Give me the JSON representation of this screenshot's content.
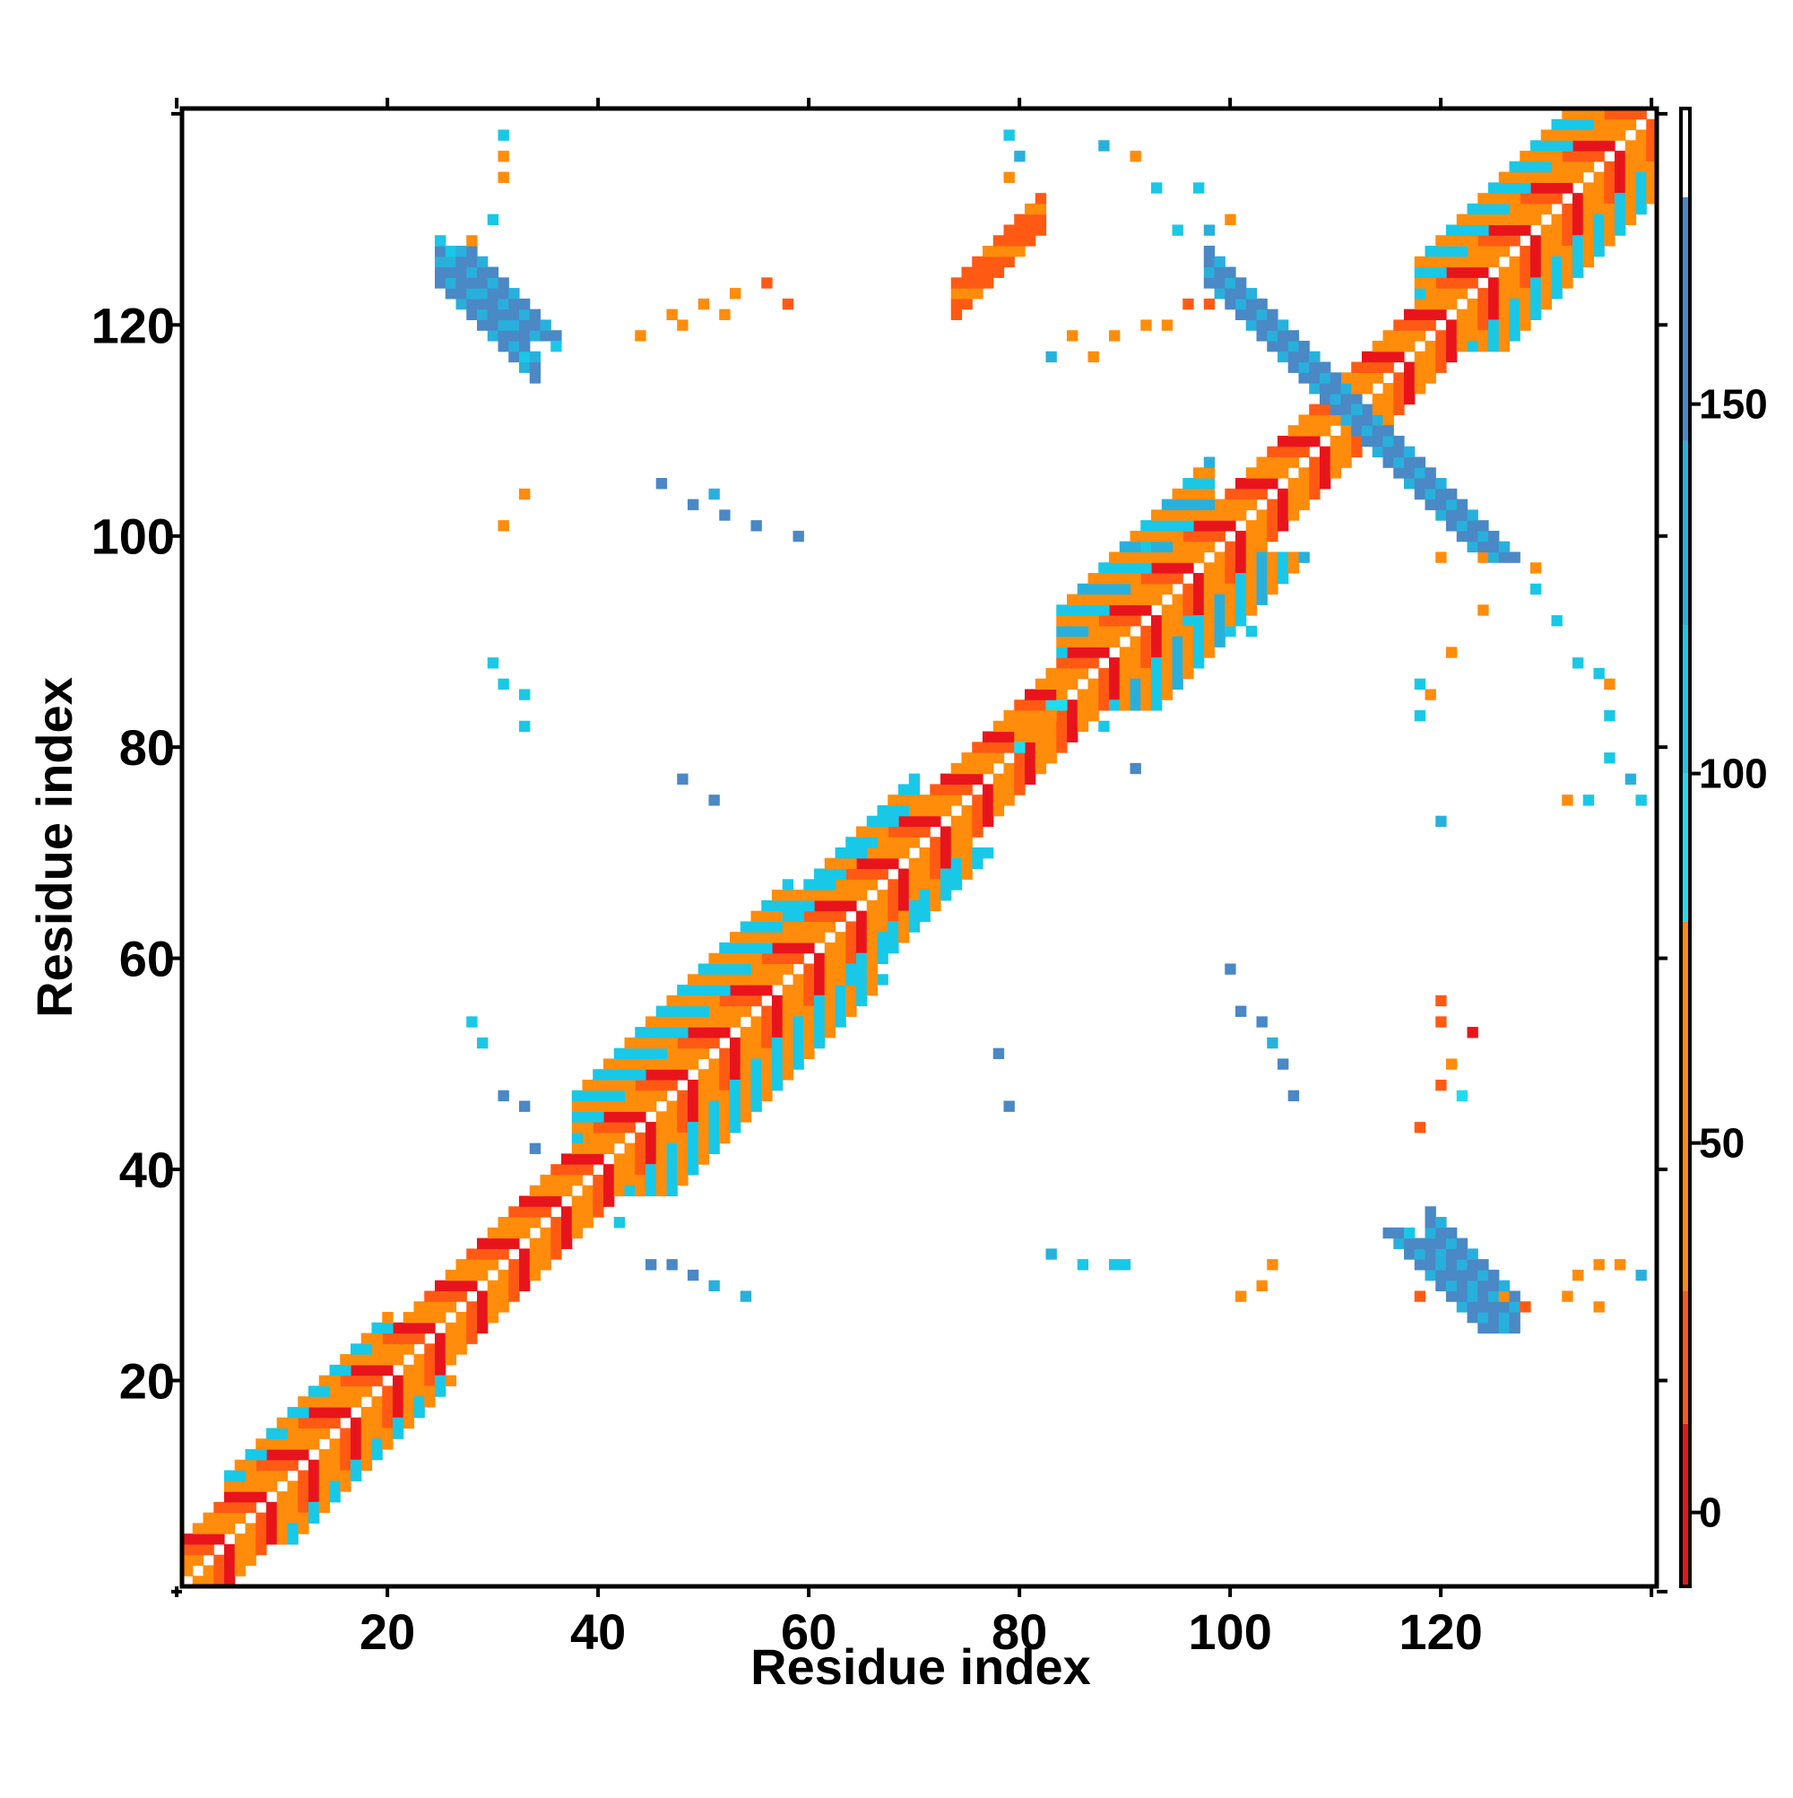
{
  "chart_data": {
    "type": "heatmap",
    "title": "",
    "xlabel": "Residue index",
    "ylabel": "Residue index",
    "xlim": [
      1,
      140
    ],
    "ylim": [
      1,
      140
    ],
    "x_ticks": [
      20,
      40,
      60,
      80,
      100,
      120
    ],
    "y_ticks": [
      20,
      40,
      60,
      80,
      100,
      120
    ],
    "grid": false,
    "legend": "none",
    "colorbar": {
      "position": "right",
      "range": [
        -10,
        190
      ],
      "ticks": [
        0,
        50,
        100,
        150
      ],
      "stops": [
        {
          "from": -10,
          "to": 12,
          "color": "#e8141c"
        },
        {
          "from": 12,
          "to": 30,
          "color": "#ff5a14"
        },
        {
          "from": 30,
          "to": 80,
          "color": "#ff8c0a"
        },
        {
          "from": 80,
          "to": 100,
          "color": "#1edcf0"
        },
        {
          "from": 100,
          "to": 120,
          "color": "#19c8e6"
        },
        {
          "from": 120,
          "to": 145,
          "color": "#28b0dc"
        },
        {
          "from": 145,
          "to": 178,
          "color": "#4a88c6"
        },
        {
          "from": 178,
          "to": 190,
          "color": "#ffffff"
        }
      ]
    },
    "value_bands": {
      "diagonal_alternating": [
        5,
        60
      ],
      "helix_cyan": 100,
      "i_plus_4": 65,
      "antiparallel_sheet": 165,
      "parallel_sheet": 20
    },
    "bands": [
      {
        "kind": "diag",
        "x1": 1,
        "x2": 140,
        "offsets": [
          1,
          2,
          3,
          4
        ],
        "value_cycle": [
          10,
          40,
          65,
          25
        ]
      },
      {
        "kind": "diag",
        "x1": 5,
        "x2": 20,
        "offsets": [
          5,
          6
        ],
        "value_cycle": [
          105,
          60
        ]
      },
      {
        "kind": "diag",
        "x1": 38,
        "x2": 58,
        "offsets": [
          5,
          6,
          7,
          8,
          9
        ],
        "value_cycle": [
          100,
          60,
          115,
          40
        ]
      },
      {
        "kind": "diag",
        "x1": 58,
        "x2": 70,
        "offsets": [
          5,
          6,
          7
        ],
        "value_cycle": [
          100,
          60,
          115
        ]
      },
      {
        "kind": "diag",
        "x1": 84,
        "x2": 98,
        "offsets": [
          5,
          6,
          7,
          8,
          9
        ],
        "value_cycle": [
          105,
          65,
          120,
          40
        ]
      },
      {
        "kind": "diag",
        "x1": 118,
        "x2": 135,
        "offsets": [
          5,
          6,
          7,
          8
        ],
        "value_cycle": [
          110,
          55,
          100,
          30
        ]
      },
      {
        "kind": "anti",
        "sum": 222,
        "x1": 98,
        "x2": 124,
        "width": 4,
        "value": 165
      },
      {
        "kind": "anti",
        "sum": 149,
        "x1": 25,
        "x2": 34,
        "width": 3,
        "value": 160
      },
      {
        "kind": "anti",
        "sum": 152,
        "x1": 119,
        "x2": 127,
        "width": 4,
        "value": 165
      },
      {
        "kind": "para",
        "diff": -47,
        "x1": 27,
        "x2": 34,
        "width": 4,
        "value": 20
      },
      {
        "kind": "para",
        "diff": 47,
        "x1": 74,
        "x2": 82,
        "width": 4,
        "value": 20
      },
      {
        "kind": "para",
        "diff": 0,
        "x1": 80,
        "x2": 84,
        "width": 2,
        "value": 60
      }
    ],
    "patches": [
      [
        31,
        138,
        100
      ],
      [
        31,
        136,
        55
      ],
      [
        31,
        134,
        55
      ],
      [
        30,
        130,
        110
      ],
      [
        28,
        128,
        35
      ],
      [
        29,
        126,
        120
      ],
      [
        25,
        128,
        115
      ],
      [
        26,
        127,
        110
      ],
      [
        33,
        117,
        100
      ],
      [
        36,
        118,
        110
      ],
      [
        44,
        119,
        30
      ],
      [
        47,
        121,
        50
      ],
      [
        48,
        120,
        60
      ],
      [
        50,
        122,
        40
      ],
      [
        52,
        121,
        60
      ],
      [
        53,
        123,
        30
      ],
      [
        56,
        124,
        20
      ],
      [
        58,
        122,
        20
      ],
      [
        31,
        101,
        35
      ],
      [
        33,
        104,
        55
      ],
      [
        46,
        105,
        150
      ],
      [
        49,
        103,
        150
      ],
      [
        51,
        104,
        140
      ],
      [
        52,
        102,
        160
      ],
      [
        55,
        101,
        170
      ],
      [
        59,
        100,
        150
      ],
      [
        30,
        88,
        100
      ],
      [
        31,
        86,
        110
      ],
      [
        33,
        85,
        105
      ],
      [
        33,
        82,
        110
      ],
      [
        48,
        77,
        150
      ],
      [
        51,
        75,
        150
      ],
      [
        28,
        54,
        100
      ],
      [
        29,
        52,
        110
      ],
      [
        31,
        47,
        150
      ],
      [
        33,
        46,
        150
      ],
      [
        34,
        42,
        160
      ],
      [
        42,
        35,
        100
      ],
      [
        45,
        31,
        150
      ],
      [
        47,
        31,
        150
      ],
      [
        49,
        30,
        150
      ],
      [
        51,
        29,
        120
      ],
      [
        54,
        28,
        130
      ],
      [
        79,
        138,
        100
      ],
      [
        80,
        136,
        120
      ],
      [
        79,
        134,
        60
      ],
      [
        88,
        137,
        120
      ],
      [
        91,
        136,
        60
      ],
      [
        93,
        133,
        100
      ],
      [
        97,
        133,
        100
      ],
      [
        95,
        129,
        110
      ],
      [
        98,
        129,
        120
      ],
      [
        100,
        130,
        30
      ],
      [
        83,
        117,
        130
      ],
      [
        85,
        119,
        60
      ],
      [
        87,
        117,
        40
      ],
      [
        89,
        119,
        40
      ],
      [
        92,
        120,
        40
      ],
      [
        94,
        120,
        40
      ],
      [
        96,
        122,
        20
      ],
      [
        98,
        122,
        20
      ],
      [
        92,
        101,
        105
      ],
      [
        92,
        99,
        110
      ],
      [
        96,
        92,
        105
      ],
      [
        100,
        91,
        110
      ],
      [
        102,
        91,
        110
      ],
      [
        88,
        82,
        115
      ],
      [
        91,
        78,
        150
      ],
      [
        83,
        32,
        120
      ],
      [
        86,
        31,
        110
      ],
      [
        89,
        31,
        100
      ],
      [
        90,
        31,
        100
      ],
      [
        100,
        59,
        150
      ],
      [
        101,
        55,
        160
      ],
      [
        103,
        54,
        150
      ],
      [
        104,
        52,
        120
      ],
      [
        105,
        50,
        160
      ],
      [
        106,
        47,
        150
      ],
      [
        78,
        51,
        150
      ],
      [
        79,
        46,
        150
      ],
      [
        101,
        28,
        35
      ],
      [
        103,
        29,
        35
      ],
      [
        104,
        31,
        30
      ],
      [
        120,
        98,
        60
      ],
      [
        124,
        98,
        30
      ],
      [
        121,
        89,
        40
      ],
      [
        124,
        93,
        40
      ],
      [
        119,
        85,
        40
      ],
      [
        118,
        86,
        110
      ],
      [
        118,
        83,
        110
      ],
      [
        129,
        97,
        35
      ],
      [
        129,
        95,
        110
      ],
      [
        131,
        92,
        110
      ],
      [
        133,
        88,
        110
      ],
      [
        135,
        87,
        100
      ],
      [
        136,
        86,
        55
      ],
      [
        136,
        83,
        110
      ],
      [
        132,
        75,
        40
      ],
      [
        134,
        75,
        110
      ],
      [
        136,
        79,
        115
      ],
      [
        138,
        77,
        130
      ],
      [
        139,
        75,
        110
      ],
      [
        120,
        73,
        130
      ],
      [
        120,
        56,
        20
      ],
      [
        120,
        54,
        20
      ],
      [
        123,
        53,
        10
      ],
      [
        121,
        50,
        40
      ],
      [
        120,
        48,
        20
      ],
      [
        122,
        47,
        90
      ],
      [
        118,
        44,
        15
      ],
      [
        117,
        34,
        100
      ],
      [
        118,
        28,
        20
      ],
      [
        126,
        28,
        40
      ],
      [
        128,
        27,
        20
      ],
      [
        132,
        28,
        55
      ],
      [
        135,
        27,
        35
      ],
      [
        133,
        30,
        60
      ],
      [
        135,
        31,
        55
      ],
      [
        137,
        31,
        55
      ],
      [
        139,
        30,
        120
      ]
    ]
  }
}
